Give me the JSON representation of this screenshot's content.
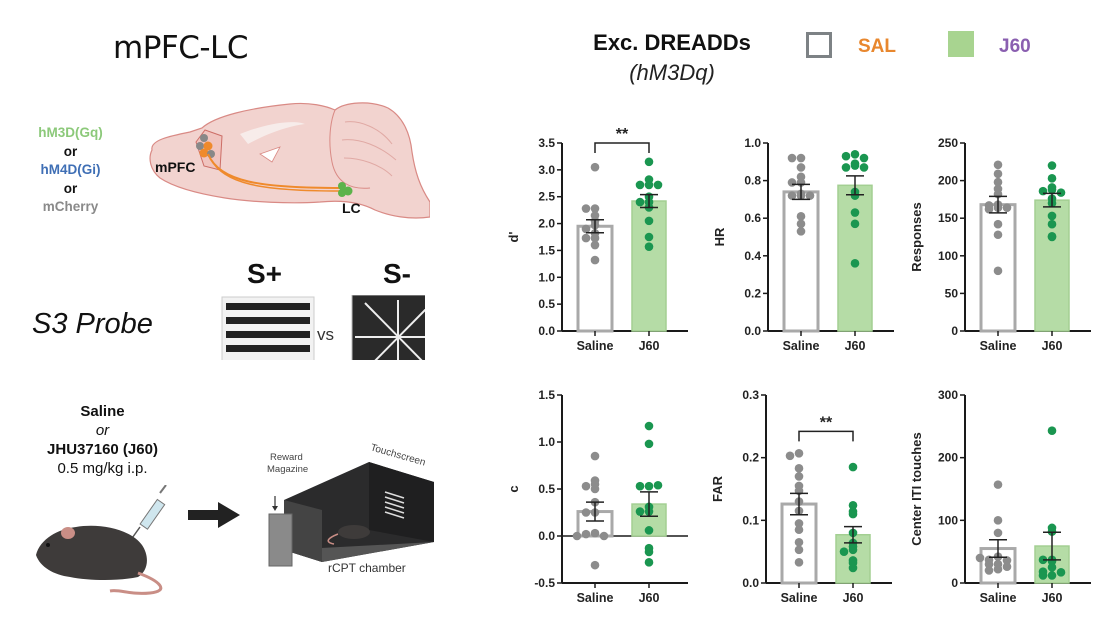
{
  "header": {
    "title": "mPFC-LC",
    "legend_title": "Exc. DREADDs",
    "legend_subtitle": "(hM3Dq)",
    "legend_items": [
      {
        "label": "SAL",
        "label_color": "#e8872e",
        "swatch_fill": "#ffffff",
        "swatch_stroke": "#7d8285"
      },
      {
        "label": "J60",
        "label_color": "#8a5fb0",
        "swatch_fill": "#a8d490",
        "swatch_stroke": "#a8d490"
      }
    ]
  },
  "diagram": {
    "virus_options": [
      {
        "text": "hM3D(Gq)",
        "color": "#8cc97a"
      },
      {
        "text": "or",
        "color": "#111111"
      },
      {
        "text": "hM4D(Gi)",
        "color": "#3f6fb5"
      },
      {
        "text": "or",
        "color": "#111111"
      },
      {
        "text": "mCherry",
        "color": "#8a8a8a"
      }
    ],
    "brain_labels": {
      "mpfc": "mPFC",
      "lc": "LC"
    },
    "probe_label": "S3 Probe",
    "stim_plus": "S+",
    "stim_minus": "S-",
    "vs": "vs",
    "drug_lines": {
      "a": "Saline",
      "b": "or",
      "c": "JHU37160 (J60)",
      "d": "0.5 mg/kg i.p."
    },
    "chamber_labels": {
      "magazine_1": "Reward",
      "magazine_2": "Magazine",
      "screen": "Touchscreen",
      "chamber": "rCPT chamber"
    }
  },
  "colors": {
    "saline_bar_stroke": "#a9a9a9",
    "saline_dot": "#8c8c8c",
    "j60_bar_fill": "#b5dca6",
    "j60_bar_stroke": "#a3cf92",
    "j60_dot": "#1a9650",
    "axis": "#1a1a1a"
  },
  "chart_data": [
    {
      "type": "bar",
      "title": "",
      "ylabel": "d'",
      "categories": [
        "Saline",
        "J60"
      ],
      "ylim": [
        0,
        3.5
      ],
      "yticks": [
        0.0,
        0.5,
        1.0,
        1.5,
        2.0,
        2.5,
        3.0,
        3.5
      ],
      "tick_decimals": 1,
      "means": [
        1.95,
        2.42
      ],
      "sem": [
        0.12,
        0.12
      ],
      "points": [
        [
          3.05,
          2.28,
          2.28,
          2.15,
          2.05,
          1.97,
          1.9,
          1.82,
          1.73,
          1.73,
          1.6,
          1.32
        ],
        [
          3.15,
          2.82,
          2.72,
          2.72,
          2.72,
          2.5,
          2.4,
          2.4,
          2.3,
          2.05,
          1.75,
          1.57
        ]
      ],
      "significance": {
        "label": "**",
        "y": 3.5
      }
    },
    {
      "type": "bar",
      "ylabel": "HR",
      "categories": [
        "Saline",
        "J60"
      ],
      "ylim": [
        0,
        1.0
      ],
      "yticks": [
        0.0,
        0.2,
        0.4,
        0.6,
        0.8,
        1.0
      ],
      "tick_decimals": 1,
      "means": [
        0.74,
        0.775
      ],
      "sem": [
        0.04,
        0.05
      ],
      "points": [
        [
          0.92,
          0.92,
          0.87,
          0.82,
          0.79,
          0.79,
          0.73,
          0.72,
          0.72,
          0.72,
          0.61,
          0.57,
          0.53
        ],
        [
          0.94,
          0.93,
          0.92,
          0.89,
          0.88,
          0.87,
          0.87,
          0.74,
          0.72,
          0.63,
          0.57,
          0.36
        ]
      ]
    },
    {
      "type": "bar",
      "ylabel": "Responses",
      "categories": [
        "Saline",
        "J60"
      ],
      "ylim": [
        0,
        250
      ],
      "yticks": [
        0,
        50,
        100,
        150,
        200,
        250
      ],
      "tick_decimals": 0,
      "means": [
        168,
        174
      ],
      "sem": [
        11,
        9
      ],
      "points": [
        [
          221,
          209,
          198,
          189,
          182,
          168,
          167,
          164,
          162,
          164,
          142,
          128,
          80
        ],
        [
          220,
          203,
          188,
          186,
          191,
          184,
          176,
          170,
          153,
          142,
          125,
          126
        ]
      ]
    },
    {
      "type": "bar",
      "ylabel": "c",
      "categories": [
        "Saline",
        "J60"
      ],
      "ylim": [
        -0.5,
        1.5
      ],
      "yticks": [
        -0.5,
        0.0,
        0.5,
        1.0,
        1.5
      ],
      "tick_decimals": 1,
      "means": [
        0.26,
        0.34
      ],
      "sem": [
        0.1,
        0.13
      ],
      "points": [
        [
          0.85,
          0.59,
          0.55,
          0.53,
          0.5,
          0.36,
          0.25,
          0.25,
          0.03,
          0.02,
          0.0,
          0.0,
          -0.31
        ],
        [
          1.17,
          0.98,
          0.53,
          0.53,
          0.54,
          0.31,
          0.26,
          0.26,
          0.06,
          -0.13,
          -0.17,
          -0.28
        ]
      ]
    },
    {
      "type": "bar",
      "ylabel": "FAR",
      "categories": [
        "Saline",
        "J60"
      ],
      "ylim": [
        0,
        0.3
      ],
      "yticks": [
        0.0,
        0.1,
        0.2,
        0.3
      ],
      "tick_decimals": 1,
      "means": [
        0.126,
        0.077
      ],
      "sem": [
        0.017,
        0.013
      ],
      "points": [
        [
          0.207,
          0.203,
          0.183,
          0.17,
          0.155,
          0.147,
          0.13,
          0.115,
          0.095,
          0.085,
          0.065,
          0.053,
          0.033
        ],
        [
          0.185,
          0.124,
          0.114,
          0.11,
          0.08,
          0.064,
          0.058,
          0.053,
          0.05,
          0.036,
          0.032,
          0.024
        ]
      ],
      "significance": {
        "label": "**",
        "y": 0.242
      }
    },
    {
      "type": "bar",
      "ylabel": "Center ITI touches",
      "categories": [
        "Saline",
        "J60"
      ],
      "ylim": [
        0,
        300
      ],
      "yticks": [
        0,
        100,
        200,
        300
      ],
      "tick_decimals": 0,
      "means": [
        55,
        59
      ],
      "sem": [
        14,
        22
      ],
      "points": [
        [
          157,
          100,
          80,
          42,
          37,
          36,
          30,
          22,
          20,
          40,
          30,
          26
        ],
        [
          243,
          88,
          82,
          37,
          37,
          35,
          25,
          18,
          17,
          12,
          12
        ]
      ]
    }
  ]
}
